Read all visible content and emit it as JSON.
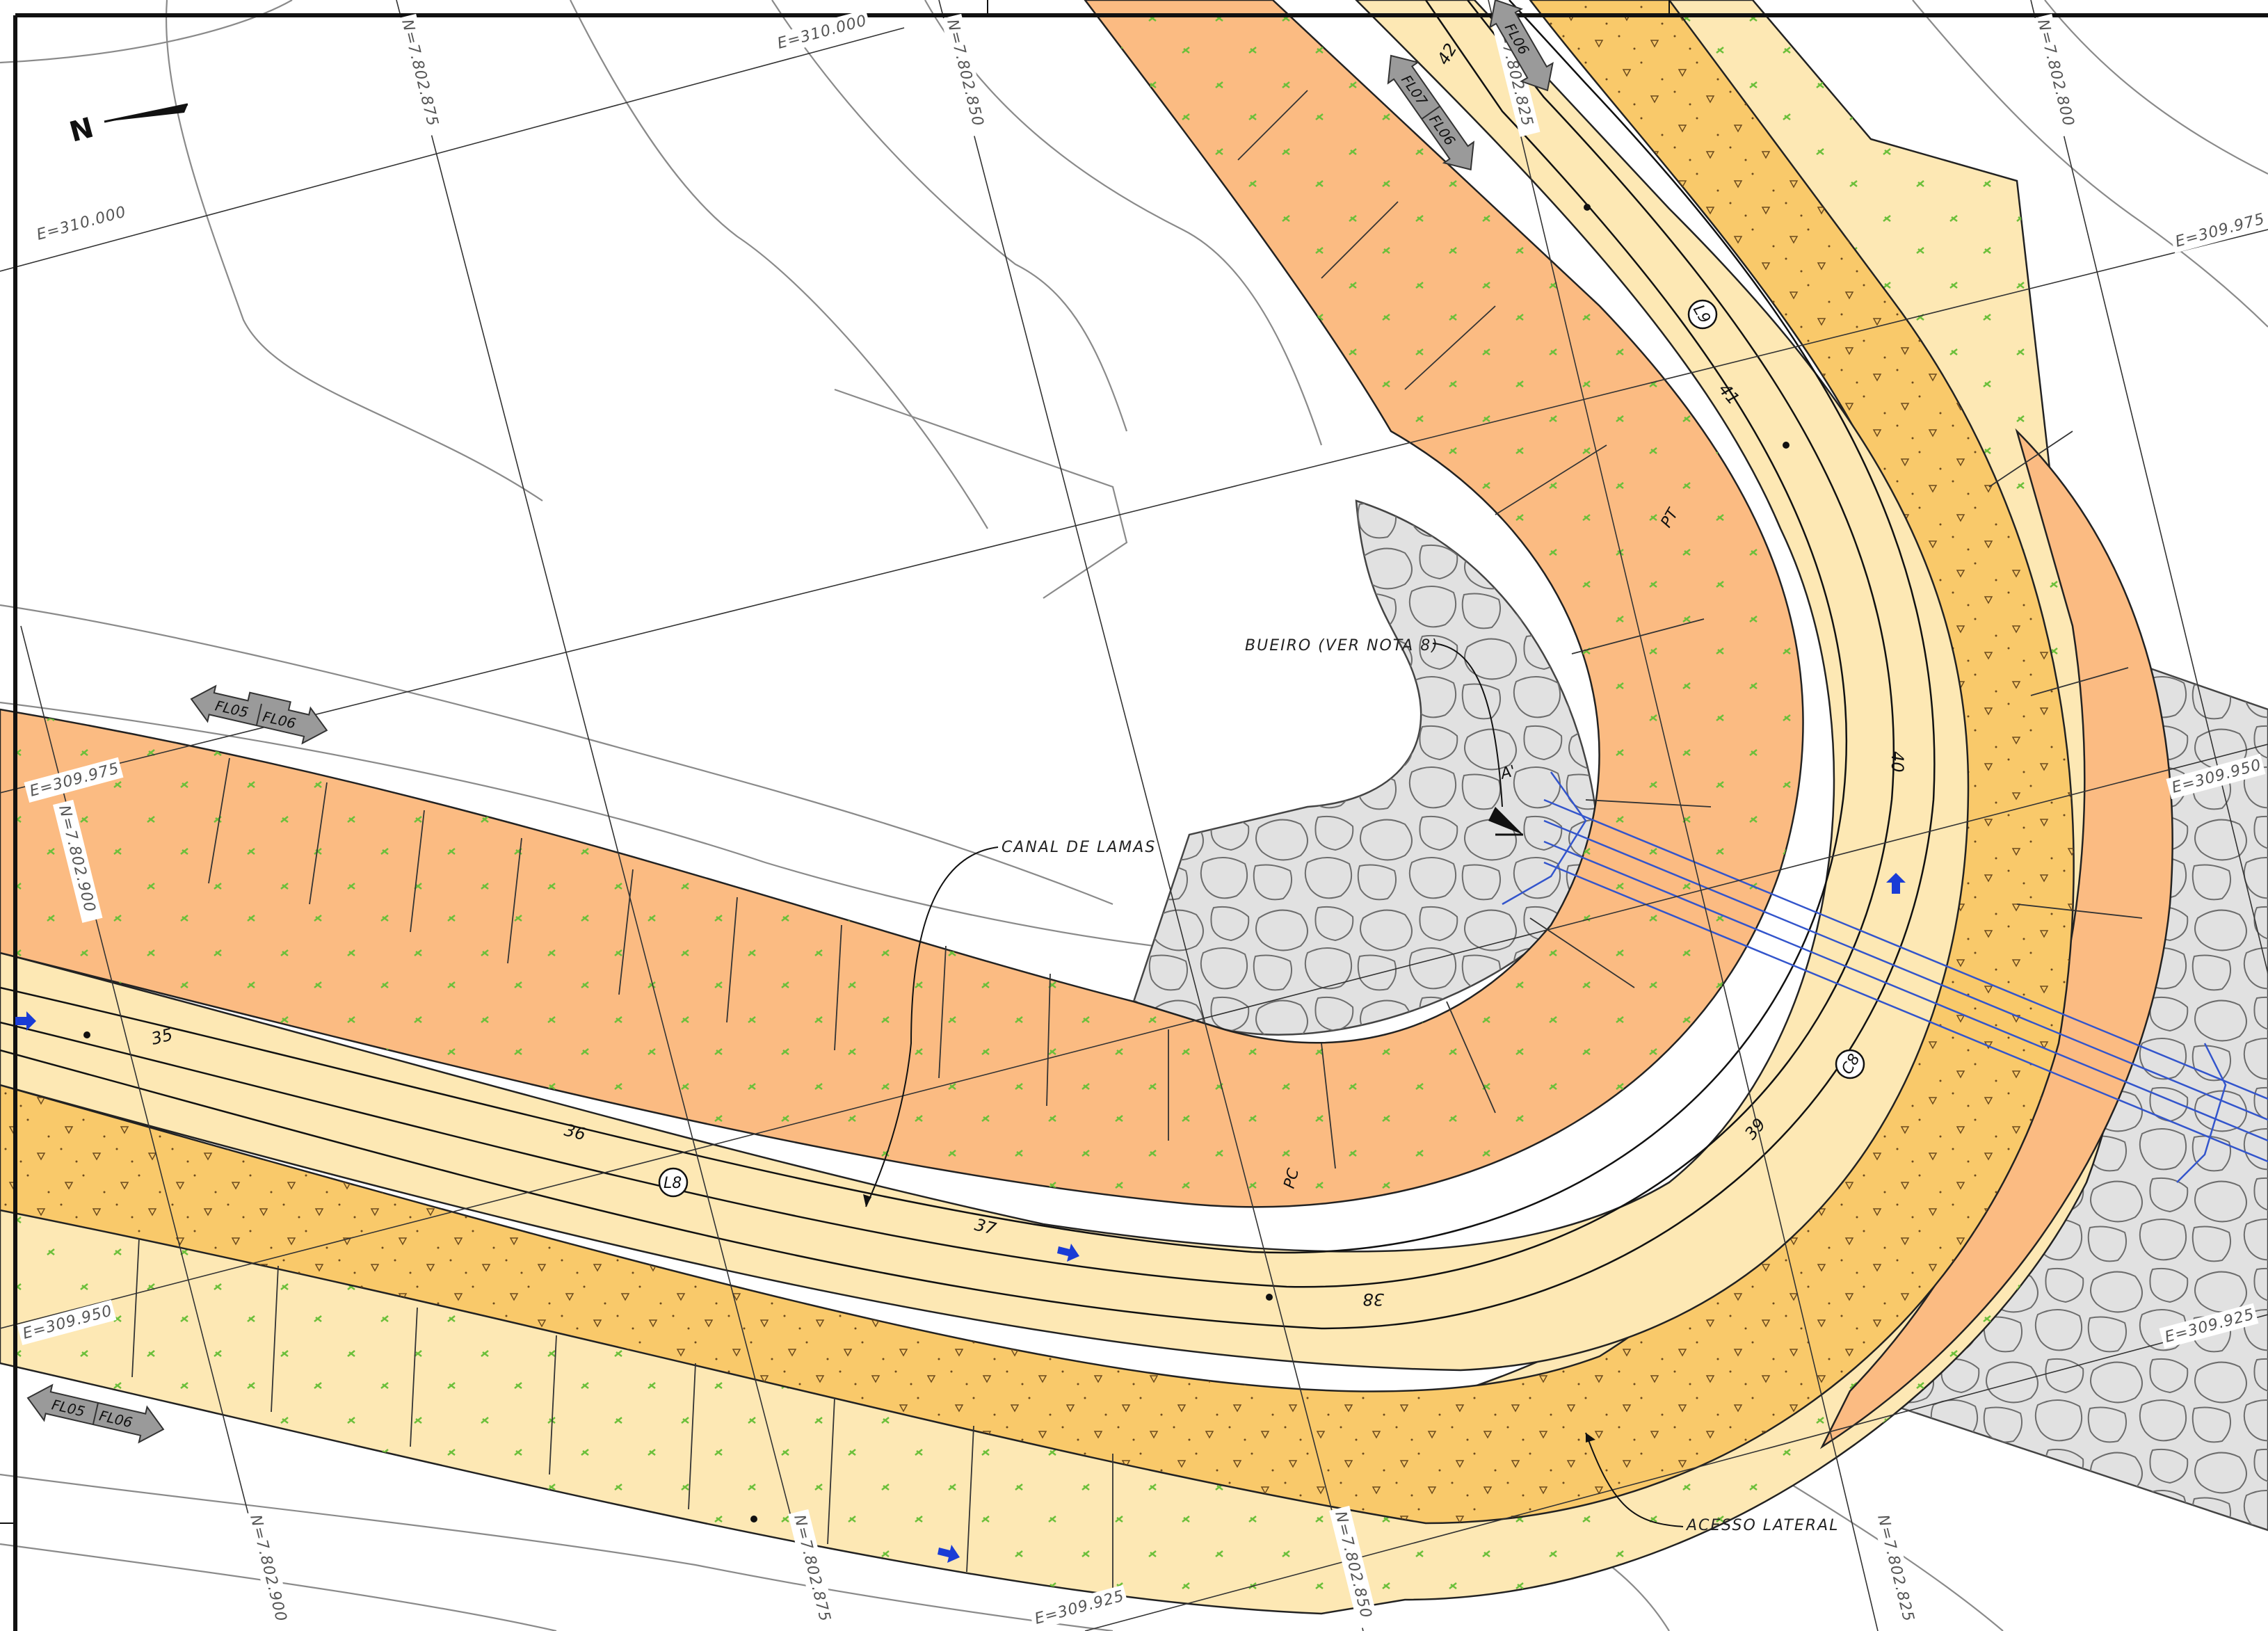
{
  "north_arrow": {
    "letter": "N"
  },
  "grid_labels": {
    "e_310000_a": "E=310.000",
    "e_310000_b": "E=310.000",
    "e_309975_a": "E=309.975",
    "e_309975_b": "E=309.975",
    "e_309950_a": "E=309.950",
    "e_309950_b": "E=309.950",
    "e_309925_a": "E=309.925",
    "e_309925_b": "E=309.925",
    "n_7802875_a": "N=7.802.875",
    "n_7802875_b": "N=7.802.875",
    "n_7802850_a": "N=7.802.850",
    "n_7802850_b": "N=7.802.850",
    "n_7802825_a": "N=7.802.825",
    "n_7802825_b": "N=7.802.825",
    "n_7802900_a": "N=7.802.900",
    "n_7802900_b": "N=7.802.900",
    "n_7802800": "N=7.802.800"
  },
  "annotations": {
    "bueiro": "BUEIRO (VER NOTA 8)",
    "canal": "CANAL DE LAMAS",
    "acesso": "ACESSO LATERAL",
    "section_marker": "A'",
    "pc": "PC",
    "pt": "PT"
  },
  "stations": [
    "35",
    "36",
    "37",
    "38",
    "39",
    "40",
    "41",
    "42"
  ],
  "tags": {
    "l8": "L8",
    "c8": "C8",
    "l9": "L9"
  },
  "flow_badges": {
    "fl05": "FL05",
    "fl06": "FL06",
    "fl07": "FL07"
  },
  "colors": {
    "slope_orange": "#fbbb82",
    "platform_yellow": "#fde8b4",
    "road_gold": "#f9c96a",
    "riprap_gray": "#e1e1e1",
    "contour": "#8a8a8a",
    "culvert_blue": "#3355cc",
    "flow_arrow": "#1a3cd6",
    "vegetation_mark": "#6bbf3a"
  }
}
